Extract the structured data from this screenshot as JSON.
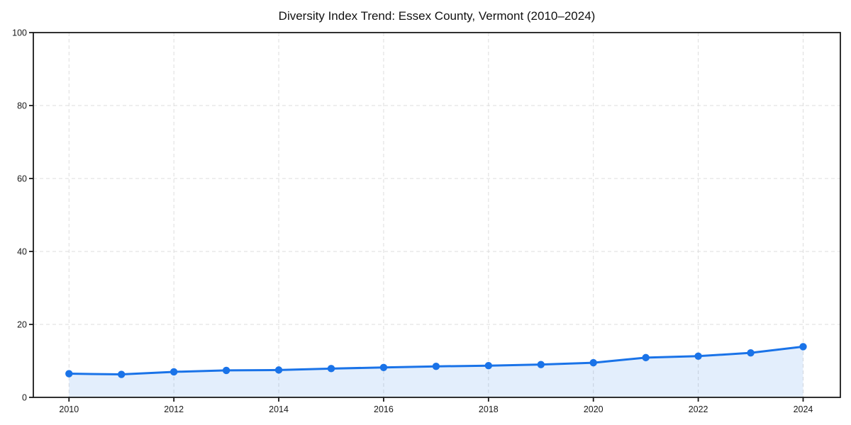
{
  "chart_data": {
    "type": "line",
    "title": "Diversity Index Trend: Essex County, Vermont (2010–2024)",
    "series_name": "Diversity Index",
    "x": [
      2010,
      2011,
      2012,
      2013,
      2014,
      2015,
      2016,
      2017,
      2018,
      2019,
      2020,
      2021,
      2022,
      2023,
      2024
    ],
    "values": [
      6.5,
      6.3,
      7.0,
      7.4,
      7.5,
      7.9,
      8.2,
      8.5,
      8.7,
      9.0,
      9.5,
      10.9,
      11.3,
      12.2,
      13.9
    ],
    "xlabel": "",
    "ylabel": "",
    "xlim": [
      2009.32,
      2024.71
    ],
    "ylim": [
      0,
      100
    ],
    "x_ticks": [
      2010,
      2012,
      2014,
      2016,
      2018,
      2020,
      2022,
      2024
    ],
    "y_ticks": [
      0,
      20,
      40,
      60,
      80,
      100
    ],
    "grid": "dashed",
    "legend": "none",
    "area_fill": true,
    "marker": "circle",
    "colors": {
      "line": "#1a73e8",
      "marker": "#1a73e8",
      "fill": "#1a73e8",
      "fill_opacity": 0.12,
      "grid": "#dddddd",
      "spine": "#1a1a1a",
      "tick_label": "#1a1a1a",
      "title": "#111111",
      "background": "#ffffff"
    }
  }
}
